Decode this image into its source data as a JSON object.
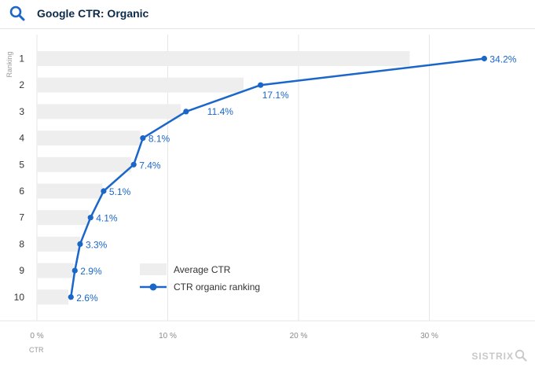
{
  "header": {
    "title": "Google CTR: Organic",
    "icon": "search-icon"
  },
  "brand": {
    "name": "SISTRIX",
    "icon": "magnifier-icon"
  },
  "colors": {
    "line": "#1a66c9",
    "bar": "#eeeeee",
    "grid": "#e6e6e6"
  },
  "chart_data": {
    "type": "bar",
    "title": "Google CTR: Organic",
    "ylabel": "Ranking",
    "xlabel": "CTR",
    "categories": [
      "1",
      "2",
      "3",
      "4",
      "5",
      "6",
      "7",
      "8",
      "9",
      "10"
    ],
    "x_ticks": [
      "0 %",
      "10 %",
      "20 %",
      "30 %"
    ],
    "xlim": [
      0,
      38
    ],
    "grid": true,
    "legend_position": "bottom-center",
    "series": [
      {
        "name": "Average CTR",
        "type": "bar",
        "values": [
          28.5,
          15.8,
          11.0,
          7.9,
          7.2,
          5.0,
          4.0,
          3.3,
          2.8,
          2.4
        ]
      },
      {
        "name": "CTR organic ranking",
        "type": "line",
        "values": [
          34.2,
          17.1,
          11.4,
          8.1,
          7.4,
          5.1,
          4.1,
          3.3,
          2.9,
          2.6
        ],
        "labels": [
          "34.2%",
          "17.1%",
          "11.4%",
          "8.1%",
          "7.4%",
          "5.1%",
          "4.1%",
          "3.3%",
          "2.9%",
          "2.6%"
        ]
      }
    ]
  }
}
